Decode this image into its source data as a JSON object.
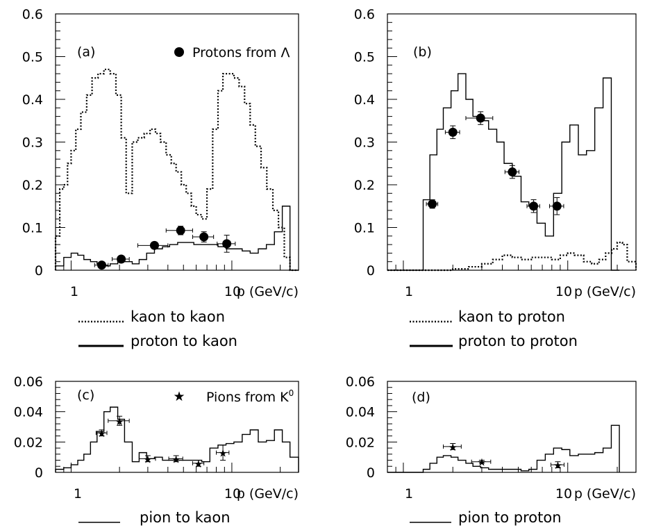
{
  "chart_data": [
    {
      "panel": "(a)",
      "type": "line",
      "xscale": "log",
      "xlim": [
        0.8,
        26
      ],
      "ylim": [
        0,
        0.6
      ],
      "xticklabels": [
        "1",
        "10"
      ],
      "yticklabels": [
        "0",
        "0.1",
        "0.2",
        "0.3",
        "0.4",
        "0.5",
        "0.6"
      ],
      "xlabel": "p (GeV/c)",
      "series": [
        {
          "name": "kaon to kaon",
          "style": "dotted",
          "edges": [
            0.8,
            0.85,
            0.9,
            0.95,
            1.0,
            1.07,
            1.15,
            1.25,
            1.35,
            1.47,
            1.6,
            1.75,
            1.9,
            2.05,
            2.2,
            2.4,
            2.6,
            2.85,
            3.1,
            3.35,
            3.6,
            3.9,
            4.2,
            4.5,
            4.85,
            5.2,
            5.6,
            6.0,
            6.5,
            7.0,
            7.6,
            8.2,
            8.8,
            9.5,
            10.3,
            11.1,
            12.0,
            13.0,
            14.0,
            15.2,
            16.5,
            18.0,
            19.5,
            21.2,
            23.0,
            26.0
          ],
          "values": [
            0.08,
            0.19,
            0.2,
            0.25,
            0.28,
            0.33,
            0.37,
            0.41,
            0.45,
            0.46,
            0.47,
            0.46,
            0.41,
            0.31,
            0.18,
            0.3,
            0.31,
            0.32,
            0.33,
            0.32,
            0.3,
            0.27,
            0.25,
            0.23,
            0.2,
            0.18,
            0.15,
            0.13,
            0.12,
            0.19,
            0.33,
            0.42,
            0.46,
            0.46,
            0.45,
            0.43,
            0.39,
            0.34,
            0.29,
            0.24,
            0.19,
            0.14,
            0.1,
            0.03,
            0.0
          ]
        },
        {
          "name": "proton to kaon",
          "style": "solid",
          "edges": [
            0.8,
            0.9,
            1.0,
            1.1,
            1.2,
            1.32,
            1.45,
            1.6,
            1.75,
            1.95,
            2.15,
            2.4,
            2.65,
            2.95,
            3.3,
            3.7,
            4.1,
            4.6,
            5.2,
            5.8,
            6.5,
            7.3,
            8.2,
            9.2,
            10.3,
            11.6,
            13.0,
            14.6,
            16.4,
            18.4,
            20.6,
            23.0,
            26.0
          ],
          "values": [
            0.01,
            0.03,
            0.04,
            0.035,
            0.025,
            0.02,
            0.015,
            0.01,
            0.015,
            0.02,
            0.02,
            0.015,
            0.025,
            0.04,
            0.05,
            0.055,
            0.06,
            0.065,
            0.065,
            0.06,
            0.06,
            0.06,
            0.055,
            0.05,
            0.05,
            0.045,
            0.04,
            0.05,
            0.06,
            0.09,
            0.15,
            0.0
          ]
        }
      ],
      "points": {
        "name": "Protons from Λ",
        "x": [
          1.55,
          2.05,
          3.3,
          4.8,
          6.7,
          9.3
        ],
        "y": [
          0.012,
          0.026,
          0.058,
          0.093,
          0.078,
          0.062
        ],
        "xerr": [
          0.15,
          0.25,
          0.7,
          0.9,
          1.0,
          1.2
        ],
        "yerr": [
          0.004,
          0.005,
          0.008,
          0.01,
          0.012,
          0.02
        ]
      },
      "legend_label": "Protons from Λ"
    },
    {
      "panel": "(b)",
      "type": "line",
      "xscale": "log",
      "xlim": [
        0.8,
        26
      ],
      "ylim": [
        0,
        0.6
      ],
      "xticklabels": [
        "1",
        "10"
      ],
      "yticklabels": [
        "0",
        "0.1",
        "0.2",
        "0.3",
        "0.4",
        "0.5",
        "0.6"
      ],
      "xlabel": "p (GeV/c)",
      "series": [
        {
          "name": "proton to proton",
          "style": "solid",
          "edges": [
            0.8,
            1.32,
            1.45,
            1.6,
            1.75,
            1.95,
            2.15,
            2.4,
            2.65,
            2.95,
            3.3,
            3.7,
            4.1,
            4.6,
            5.2,
            5.8,
            6.5,
            7.3,
            8.2,
            9.2,
            10.3,
            11.6,
            13.0,
            14.6,
            16.4,
            18.4,
            20.6
          ],
          "values": [
            0.0,
            0.165,
            0.27,
            0.33,
            0.38,
            0.42,
            0.46,
            0.4,
            0.36,
            0.35,
            0.33,
            0.3,
            0.25,
            0.22,
            0.16,
            0.15,
            0.11,
            0.08,
            0.18,
            0.3,
            0.34,
            0.27,
            0.28,
            0.38,
            0.45,
            0.0
          ]
        },
        {
          "name": "kaon to proton",
          "style": "dotted",
          "edges": [
            0.8,
            2.0,
            2.5,
            3.0,
            3.5,
            4.0,
            4.6,
            5.2,
            6.0,
            7.0,
            8.0,
            9.0,
            10.0,
            11.0,
            12.5,
            14.0,
            15.5,
            17.0,
            18.5,
            20.0,
            21.5,
            23.0,
            26.0
          ],
          "values": [
            0.0,
            0.003,
            0.008,
            0.015,
            0.025,
            0.035,
            0.03,
            0.025,
            0.03,
            0.03,
            0.025,
            0.035,
            0.04,
            0.035,
            0.02,
            0.015,
            0.025,
            0.04,
            0.05,
            0.065,
            0.06,
            0.02
          ]
        }
      ],
      "points": {
        "name": "",
        "x": [
          1.5,
          2.0,
          2.95,
          4.6,
          6.2,
          8.6
        ],
        "y": [
          0.155,
          0.323,
          0.356,
          0.23,
          0.15,
          0.15
        ],
        "xerr": [
          0.12,
          0.2,
          0.55,
          0.45,
          0.55,
          0.85
        ],
        "yerr": [
          0.01,
          0.015,
          0.015,
          0.015,
          0.015,
          0.02
        ]
      },
      "legend_label": ""
    },
    {
      "panel": "(c)",
      "type": "line",
      "xscale": "log",
      "xlim": [
        0.8,
        26
      ],
      "ylim": [
        0,
        0.06
      ],
      "xticklabels": [
        "1",
        "10"
      ],
      "yticklabels": [
        "0",
        "0.02",
        "0.04",
        "0.06"
      ],
      "xlabel": "p (GeV/c)",
      "series": [
        {
          "name": "pion to kaon",
          "style": "solid",
          "edges": [
            0.8,
            0.9,
            1.0,
            1.1,
            1.2,
            1.32,
            1.45,
            1.6,
            1.75,
            1.95,
            2.15,
            2.4,
            2.65,
            2.95,
            3.3,
            3.7,
            4.1,
            4.6,
            5.2,
            5.8,
            6.5,
            7.3,
            8.2,
            9.2,
            10.3,
            11.6,
            13.0,
            14.6,
            16.4,
            18.4,
            20.6,
            23.0,
            26.0
          ],
          "values": [
            0.002,
            0.003,
            0.005,
            0.008,
            0.012,
            0.02,
            0.027,
            0.04,
            0.043,
            0.035,
            0.02,
            0.007,
            0.013,
            0.009,
            0.01,
            0.008,
            0.008,
            0.008,
            0.008,
            0.008,
            0.007,
            0.016,
            0.018,
            0.019,
            0.02,
            0.025,
            0.028,
            0.02,
            0.021,
            0.028,
            0.02,
            0.01
          ]
        }
      ],
      "points": {
        "name": "Pions from K0",
        "x": [
          1.55,
          2.0,
          3.0,
          4.5,
          6.2,
          8.8
        ],
        "y": [
          0.026,
          0.034,
          0.009,
          0.009,
          0.006,
          0.013
        ],
        "xerr": [
          0.12,
          0.3,
          0.35,
          0.45,
          0.5,
          0.8
        ],
        "yerr": [
          0.002,
          0.003,
          0.002,
          0.002,
          0.002,
          0.005
        ]
      },
      "legend_label": "Pions from K",
      "legend_sup": "0"
    },
    {
      "panel": "(d)",
      "type": "line",
      "xscale": "log",
      "xlim": [
        0.8,
        26
      ],
      "ylim": [
        0,
        0.06
      ],
      "xticklabels": [
        "1",
        "10"
      ],
      "yticklabels": [
        "0",
        "0.02",
        "0.04",
        "0.06"
      ],
      "xlabel": "p (GeV/c)",
      "series": [
        {
          "name": "pion to proton",
          "style": "solid",
          "edges": [
            0.8,
            1.32,
            1.45,
            1.6,
            1.75,
            1.95,
            2.15,
            2.4,
            2.65,
            2.95,
            3.3,
            3.7,
            4.1,
            4.6,
            5.2,
            5.8,
            6.5,
            7.3,
            8.2,
            9.2,
            10.3,
            11.6,
            13.0,
            14.6,
            16.4,
            18.4,
            20.6
          ],
          "values": [
            0.0,
            0.002,
            0.006,
            0.01,
            0.011,
            0.01,
            0.008,
            0.006,
            0.004,
            0.003,
            0.002,
            0.002,
            0.002,
            0.002,
            0.001,
            0.002,
            0.008,
            0.012,
            0.016,
            0.015,
            0.011,
            0.012,
            0.012,
            0.013,
            0.016,
            0.031
          ]
        }
      ],
      "points": {
        "name": "",
        "x": [
          2.0,
          3.0,
          8.7
        ],
        "y": [
          0.017,
          0.007,
          0.005
        ],
        "xerr": [
          0.25,
          0.4,
          0.8
        ],
        "yerr": [
          0.002,
          0.001,
          0.002
        ]
      },
      "legend_label": ""
    }
  ],
  "legends": {
    "a_dotted": "kaon to kaon",
    "a_solid": "proton to kaon",
    "b_dotted": "kaon to proton",
    "b_solid": "proton to proton",
    "c_solid": "pion to kaon",
    "d_solid": "pion to proton"
  }
}
